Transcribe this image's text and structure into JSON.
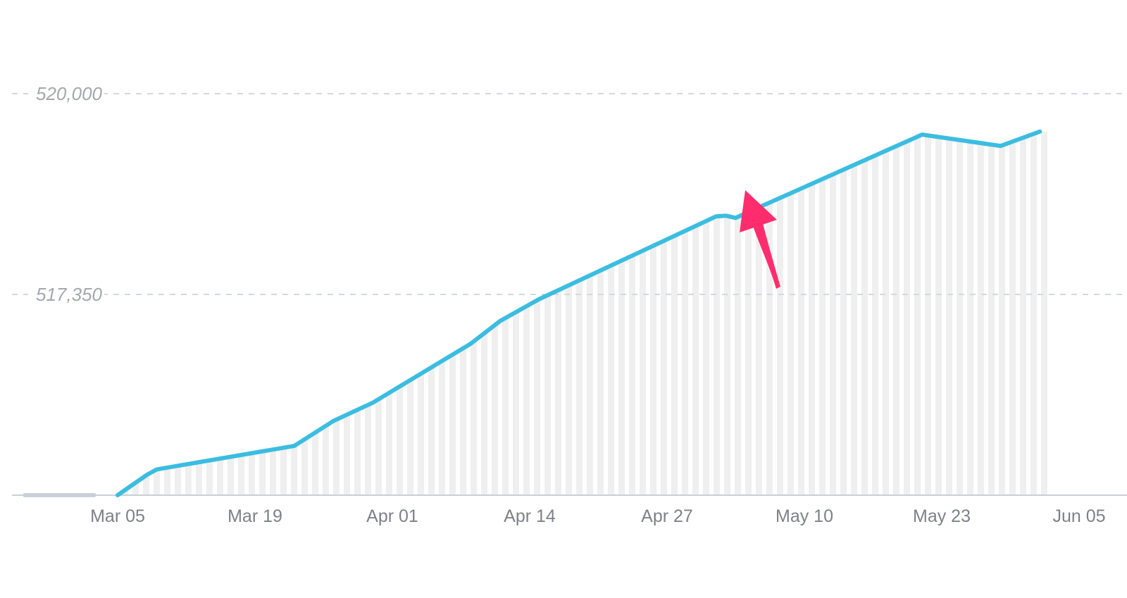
{
  "chart_data": {
    "type": "line",
    "title": "",
    "xlabel": "",
    "ylabel": "",
    "x_tick_labels": [
      "Mar 05",
      "Mar 19",
      "Apr 01",
      "Apr 14",
      "Apr 27",
      "May 10",
      "May 23",
      "Jun 05"
    ],
    "y_tick_labels": [
      "517,350",
      "520,000"
    ],
    "y_ticks": [
      517350,
      520000
    ],
    "ylim": [
      514700,
      520000
    ],
    "grid": true,
    "legend": "none",
    "line_color": "#3bbde0",
    "bar_color": "#efefef",
    "annotation": {
      "type": "arrow",
      "color": "#ff2d6e",
      "points_to": "2021-05-07"
    },
    "series": [
      {
        "x": [
          "2021-03-05",
          "2021-03-08",
          "2021-03-09",
          "2021-03-23",
          "2021-03-27",
          "2021-03-31",
          "2021-04-10",
          "2021-04-13",
          "2021-04-17",
          "2021-04-18",
          "2021-05-05",
          "2021-05-06",
          "2021-05-07",
          "2021-05-08",
          "2021-05-26",
          "2021-06-03",
          "2021-06-07"
        ],
        "y": [
          514700,
          514970,
          515040,
          515350,
          515680,
          515920,
          516700,
          517000,
          517290,
          517350,
          518380,
          518390,
          518360,
          518420,
          519460,
          519310,
          519500
        ]
      }
    ]
  }
}
